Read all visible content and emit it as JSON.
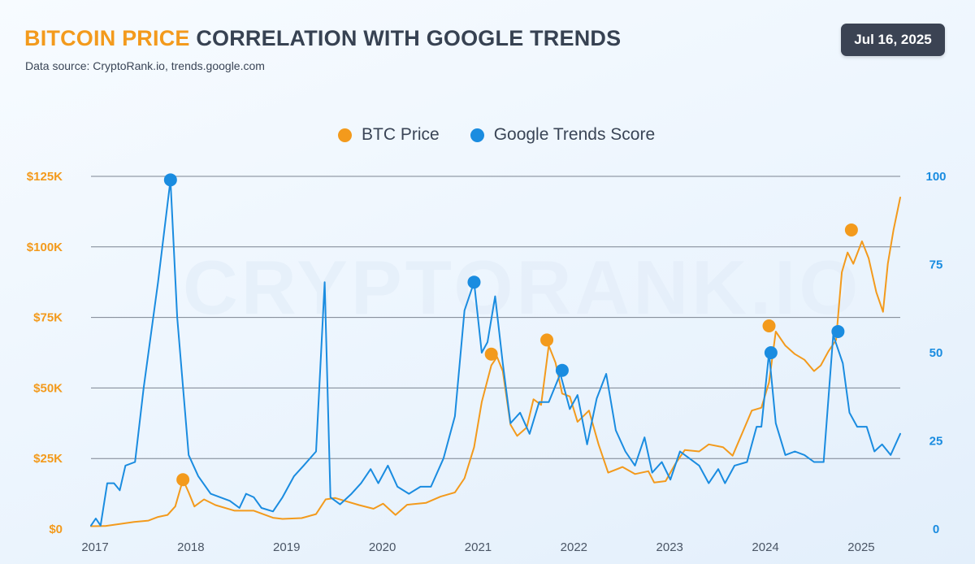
{
  "header": {
    "title_accent": "BITCOIN PRICE",
    "title_rest": "CORRELATION WITH GOOGLE TRENDS",
    "source": "Data source: CryptoRank.io, trends.google.com",
    "date": "Jul 16, 2025"
  },
  "watermark": "CRYPTORANK.IO",
  "colors": {
    "btc": "#f39a1c",
    "trends": "#1a8ce0",
    "grid": "#7b8491"
  },
  "chart_data": {
    "type": "line",
    "title": "BITCOIN PRICE CORRELATION WITH GOOGLE TRENDS",
    "x_range": [
      2017.0,
      2025.45
    ],
    "x_ticks": [
      {
        "value": 2017,
        "label": "2017"
      },
      {
        "value": 2018,
        "label": "2018"
      },
      {
        "value": 2019,
        "label": "2019"
      },
      {
        "value": 2020,
        "label": "2020"
      },
      {
        "value": 2021,
        "label": "2021"
      },
      {
        "value": 2022,
        "label": "2022"
      },
      {
        "value": 2023,
        "label": "2023"
      },
      {
        "value": 2024,
        "label": "2024"
      },
      {
        "value": 2025,
        "label": "2025"
      }
    ],
    "y_left": {
      "label": "BTC Price",
      "range": [
        0,
        125000
      ],
      "ticks": [
        {
          "value": 0,
          "label": "$0"
        },
        {
          "value": 25000,
          "label": "$25K"
        },
        {
          "value": 50000,
          "label": "$50K"
        },
        {
          "value": 75000,
          "label": "$75K"
        },
        {
          "value": 100000,
          "label": "$100K"
        },
        {
          "value": 125000,
          "label": "$125K"
        }
      ]
    },
    "y_right": {
      "label": "Google Trends Score",
      "range": [
        0,
        100
      ],
      "ticks": [
        {
          "value": 0,
          "label": "0"
        },
        {
          "value": 25,
          "label": "25"
        },
        {
          "value": 50,
          "label": "50"
        },
        {
          "value": 75,
          "label": "75"
        },
        {
          "value": 100,
          "label": "100"
        }
      ]
    },
    "legend": [
      "BTC Price",
      "Google Trends Score"
    ],
    "series": [
      {
        "name": "BTC Price",
        "axis": "left",
        "color": "#f39a1c",
        "points": [
          [
            2017.0,
            1000
          ],
          [
            2017.15,
            1100
          ],
          [
            2017.3,
            1800
          ],
          [
            2017.45,
            2500
          ],
          [
            2017.6,
            3000
          ],
          [
            2017.7,
            4300
          ],
          [
            2017.8,
            5000
          ],
          [
            2017.88,
            8000
          ],
          [
            2017.96,
            17500
          ],
          [
            2018.02,
            13000
          ],
          [
            2018.08,
            8000
          ],
          [
            2018.18,
            10500
          ],
          [
            2018.3,
            8500
          ],
          [
            2018.5,
            6500
          ],
          [
            2018.7,
            6500
          ],
          [
            2018.9,
            4000
          ],
          [
            2019.0,
            3600
          ],
          [
            2019.2,
            3900
          ],
          [
            2019.35,
            5300
          ],
          [
            2019.45,
            10500
          ],
          [
            2019.55,
            11000
          ],
          [
            2019.65,
            10000
          ],
          [
            2019.8,
            8500
          ],
          [
            2019.95,
            7200
          ],
          [
            2020.05,
            9000
          ],
          [
            2020.18,
            5000
          ],
          [
            2020.3,
            8600
          ],
          [
            2020.5,
            9300
          ],
          [
            2020.65,
            11500
          ],
          [
            2020.8,
            13000
          ],
          [
            2020.9,
            18000
          ],
          [
            2021.0,
            29000
          ],
          [
            2021.08,
            45000
          ],
          [
            2021.18,
            58000
          ],
          [
            2021.24,
            61000
          ],
          [
            2021.3,
            56000
          ],
          [
            2021.38,
            37000
          ],
          [
            2021.45,
            33000
          ],
          [
            2021.55,
            36000
          ],
          [
            2021.62,
            46000
          ],
          [
            2021.7,
            44000
          ],
          [
            2021.78,
            65000
          ],
          [
            2021.85,
            59000
          ],
          [
            2021.92,
            48000
          ],
          [
            2022.0,
            47000
          ],
          [
            2022.08,
            38000
          ],
          [
            2022.2,
            42000
          ],
          [
            2022.3,
            30000
          ],
          [
            2022.4,
            20000
          ],
          [
            2022.55,
            22000
          ],
          [
            2022.68,
            19500
          ],
          [
            2022.82,
            20500
          ],
          [
            2022.88,
            16500
          ],
          [
            2023.0,
            17000
          ],
          [
            2023.1,
            23000
          ],
          [
            2023.2,
            28000
          ],
          [
            2023.35,
            27500
          ],
          [
            2023.45,
            30000
          ],
          [
            2023.6,
            29000
          ],
          [
            2023.7,
            26000
          ],
          [
            2023.8,
            34000
          ],
          [
            2023.9,
            42000
          ],
          [
            2024.0,
            43000
          ],
          [
            2024.08,
            52000
          ],
          [
            2024.15,
            70000
          ],
          [
            2024.25,
            65000
          ],
          [
            2024.35,
            62000
          ],
          [
            2024.45,
            60000
          ],
          [
            2024.55,
            56000
          ],
          [
            2024.62,
            58000
          ],
          [
            2024.7,
            63000
          ],
          [
            2024.78,
            67000
          ],
          [
            2024.84,
            91000
          ],
          [
            2024.9,
            98000
          ],
          [
            2024.96,
            94000
          ],
          [
            2025.05,
            102000
          ],
          [
            2025.12,
            96000
          ],
          [
            2025.2,
            84000
          ],
          [
            2025.27,
            77000
          ],
          [
            2025.32,
            94000
          ],
          [
            2025.38,
            106000
          ],
          [
            2025.45,
            117500
          ]
        ],
        "highlights": [
          [
            2017.96,
            17500
          ],
          [
            2021.18,
            62000
          ],
          [
            2021.76,
            67000
          ],
          [
            2024.08,
            72000
          ],
          [
            2024.94,
            106000
          ]
        ]
      },
      {
        "name": "Google Trends Score",
        "axis": "right",
        "color": "#1a8ce0",
        "points": [
          [
            2017.0,
            1
          ],
          [
            2017.05,
            3
          ],
          [
            2017.1,
            1
          ],
          [
            2017.17,
            13
          ],
          [
            2017.24,
            13
          ],
          [
            2017.3,
            11
          ],
          [
            2017.36,
            18
          ],
          [
            2017.46,
            19
          ],
          [
            2017.55,
            40
          ],
          [
            2017.7,
            70
          ],
          [
            2017.83,
            99
          ],
          [
            2017.9,
            60
          ],
          [
            2018.02,
            21
          ],
          [
            2018.12,
            15
          ],
          [
            2018.25,
            10
          ],
          [
            2018.35,
            9
          ],
          [
            2018.45,
            8
          ],
          [
            2018.55,
            6
          ],
          [
            2018.62,
            10
          ],
          [
            2018.7,
            9
          ],
          [
            2018.78,
            6
          ],
          [
            2018.9,
            5
          ],
          [
            2019.0,
            9
          ],
          [
            2019.12,
            15
          ],
          [
            2019.22,
            18
          ],
          [
            2019.35,
            22
          ],
          [
            2019.44,
            70
          ],
          [
            2019.5,
            9
          ],
          [
            2019.6,
            7
          ],
          [
            2019.72,
            10
          ],
          [
            2019.82,
            13
          ],
          [
            2019.92,
            17
          ],
          [
            2020.0,
            13
          ],
          [
            2020.1,
            18
          ],
          [
            2020.2,
            12
          ],
          [
            2020.32,
            10
          ],
          [
            2020.44,
            12
          ],
          [
            2020.55,
            12
          ],
          [
            2020.68,
            20
          ],
          [
            2020.8,
            32
          ],
          [
            2020.9,
            62
          ],
          [
            2021.0,
            70
          ],
          [
            2021.08,
            50
          ],
          [
            2021.14,
            53
          ],
          [
            2021.22,
            66
          ],
          [
            2021.3,
            47
          ],
          [
            2021.38,
            30
          ],
          [
            2021.48,
            33
          ],
          [
            2021.58,
            27
          ],
          [
            2021.68,
            36
          ],
          [
            2021.78,
            36
          ],
          [
            2021.9,
            44
          ],
          [
            2022.0,
            34
          ],
          [
            2022.08,
            38
          ],
          [
            2022.18,
            24
          ],
          [
            2022.28,
            37
          ],
          [
            2022.38,
            44
          ],
          [
            2022.48,
            28
          ],
          [
            2022.58,
            22
          ],
          [
            2022.68,
            18
          ],
          [
            2022.78,
            26
          ],
          [
            2022.86,
            16
          ],
          [
            2022.96,
            19
          ],
          [
            2023.05,
            14
          ],
          [
            2023.15,
            22
          ],
          [
            2023.25,
            20
          ],
          [
            2023.35,
            18
          ],
          [
            2023.45,
            13
          ],
          [
            2023.55,
            17
          ],
          [
            2023.62,
            13
          ],
          [
            2023.72,
            18
          ],
          [
            2023.85,
            19
          ],
          [
            2023.95,
            29
          ],
          [
            2024.0,
            29
          ],
          [
            2024.08,
            50
          ],
          [
            2024.15,
            30
          ],
          [
            2024.25,
            21
          ],
          [
            2024.35,
            22
          ],
          [
            2024.45,
            21
          ],
          [
            2024.55,
            19
          ],
          [
            2024.65,
            19
          ],
          [
            2024.75,
            55
          ],
          [
            2024.85,
            47
          ],
          [
            2024.92,
            33
          ],
          [
            2025.0,
            29
          ],
          [
            2025.1,
            29
          ],
          [
            2025.18,
            22
          ],
          [
            2025.26,
            24
          ],
          [
            2025.35,
            21
          ],
          [
            2025.45,
            27
          ]
        ],
        "highlights": [
          [
            2017.83,
            99
          ],
          [
            2021.0,
            70
          ],
          [
            2021.92,
            45
          ],
          [
            2024.1,
            50
          ],
          [
            2024.8,
            56
          ]
        ]
      }
    ]
  }
}
